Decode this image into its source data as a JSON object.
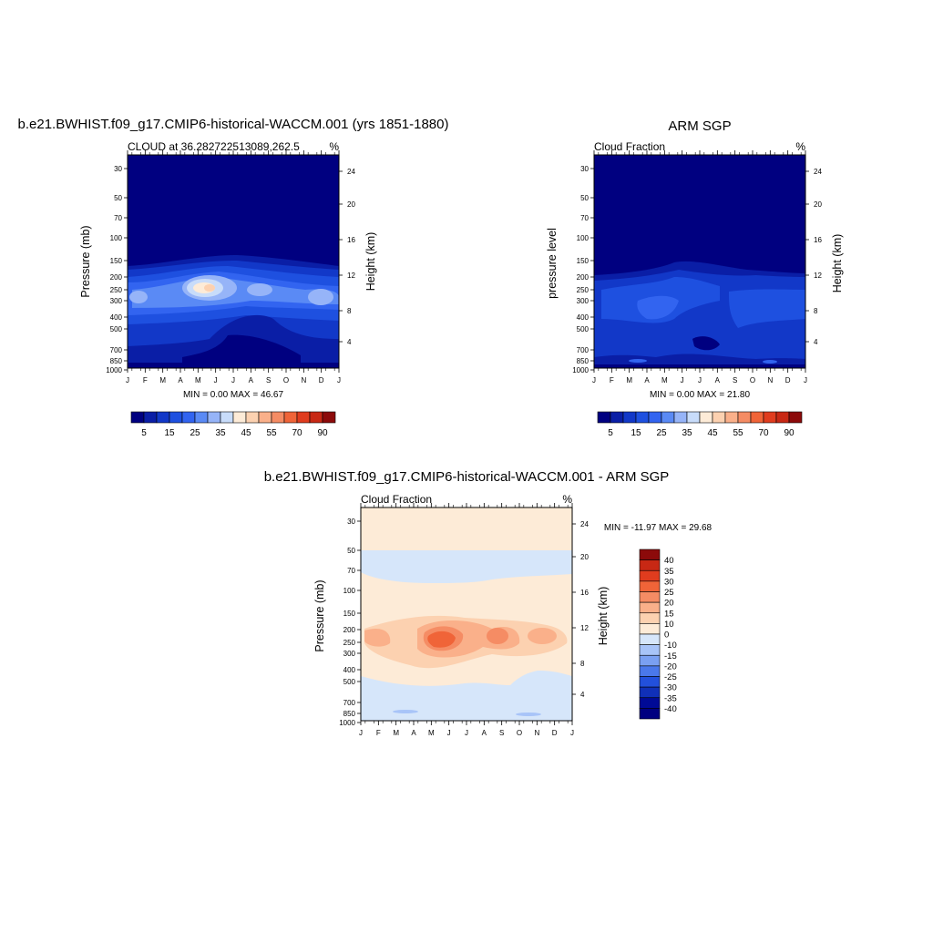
{
  "chart_data": [
    {
      "type": "heatmap",
      "title": "b.e21.BWHIST.f09_g17.CMIP6-historical-WACCM.001 (yrs 1851-1880)",
      "subtitle": "CLOUD at 36.282722513089,262.5",
      "units": "%",
      "ylabel": "Pressure (mb)",
      "y2label": "Height (km)",
      "months": [
        "J",
        "F",
        "M",
        "A",
        "M",
        "J",
        "J",
        "A",
        "S",
        "O",
        "N",
        "D",
        "J"
      ],
      "pressure_ticks": [
        "30",
        "50",
        "70",
        "100",
        "150",
        "200",
        "250",
        "300",
        "400",
        "500",
        "700",
        "850",
        "1000"
      ],
      "height_ticks": [
        "24",
        "20",
        "16",
        "12",
        "8",
        "4"
      ],
      "minmax": "MIN =   0.00 MAX =  46.67",
      "colorbar_labels": [
        "5",
        "15",
        "25",
        "35",
        "45",
        "55",
        "70",
        "90"
      ],
      "colorbar_colors": [
        "#000080",
        "#0a1ea6",
        "#1238c8",
        "#1e50e0",
        "#3264f0",
        "#5a8af5",
        "#96b4f8",
        "#c8dcfa",
        "#fdebd7",
        "#fcd1b0",
        "#fab08a",
        "#f58c64",
        "#f06438",
        "#e03c1e",
        "#c82814",
        "#8c0a0a"
      ],
      "series": [
        {
          "name": "",
          "values": []
        }
      ]
    },
    {
      "type": "heatmap",
      "title": "ARM SGP",
      "subtitle": "Cloud Fraction",
      "units": "%",
      "ylabel": "pressure level",
      "y2label": "Height (km)",
      "months": [
        "J",
        "F",
        "M",
        "A",
        "M",
        "J",
        "J",
        "A",
        "S",
        "O",
        "N",
        "D",
        "J"
      ],
      "pressure_ticks": [
        "30",
        "50",
        "70",
        "100",
        "150",
        "200",
        "250",
        "300",
        "400",
        "500",
        "700",
        "850",
        "1000"
      ],
      "height_ticks": [
        "24",
        "20",
        "16",
        "12",
        "8",
        "4"
      ],
      "minmax": "MIN =   0.00 MAX =  21.80",
      "colorbar_labels": [
        "5",
        "15",
        "25",
        "35",
        "45",
        "55",
        "70",
        "90"
      ],
      "colorbar_colors": [
        "#000080",
        "#0a1ea6",
        "#1238c8",
        "#1e50e0",
        "#3264f0",
        "#5a8af5",
        "#96b4f8",
        "#c8dcfa",
        "#fdebd7",
        "#fcd1b0",
        "#fab08a",
        "#f58c64",
        "#f06438",
        "#e03c1e",
        "#c82814",
        "#8c0a0a"
      ]
    },
    {
      "type": "heatmap",
      "title": "b.e21.BWHIST.f09_g17.CMIP6-historical-WACCM.001 - ARM SGP",
      "subtitle": "Cloud Fraction",
      "units": "%",
      "ylabel": "Pressure (mb)",
      "y2label": "Height (km)",
      "months": [
        "J",
        "F",
        "M",
        "A",
        "M",
        "J",
        "J",
        "A",
        "S",
        "O",
        "N",
        "D",
        "J"
      ],
      "pressure_ticks": [
        "30",
        "50",
        "70",
        "100",
        "150",
        "200",
        "250",
        "300",
        "400",
        "500",
        "700",
        "850",
        "1000"
      ],
      "height_ticks": [
        "24",
        "20",
        "16",
        "12",
        "8",
        "4"
      ],
      "minmax": "MIN = -11.97 MAX =  29.68",
      "colorbar_labels": [
        "40",
        "35",
        "30",
        "25",
        "20",
        "15",
        "10",
        "0",
        "-10",
        "-15",
        "-20",
        "-25",
        "-30",
        "-35",
        "-40"
      ],
      "colorbar_colors": [
        "#8c0a0a",
        "#c82814",
        "#e03c1e",
        "#f06438",
        "#f58c64",
        "#fab08a",
        "#fcd1b0",
        "#fdebd7",
        "#d6e6fa",
        "#a8c4f8",
        "#7aa0f2",
        "#4a78ea",
        "#2250dc",
        "#1030b8",
        "#000a96",
        "#000080"
      ]
    }
  ]
}
